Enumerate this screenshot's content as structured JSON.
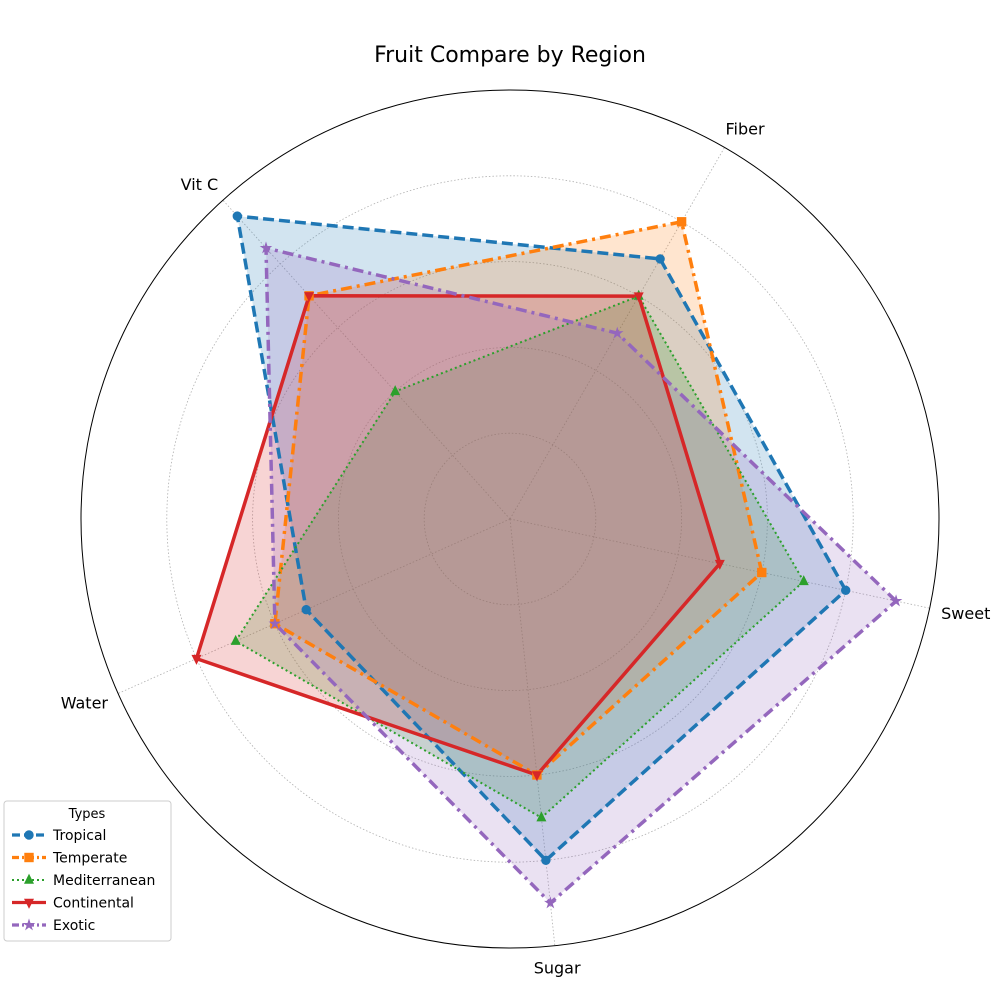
{
  "chart_data": {
    "type": "radar",
    "title": "Fruit Compare by Region",
    "axes": [
      "Sweet",
      "Fiber",
      "Vit C",
      "Water",
      "Sugar"
    ],
    "rlim": [
      0,
      10
    ],
    "rgrid": [
      2,
      4,
      6,
      8
    ],
    "grid": true,
    "legend": {
      "title": "Types",
      "placement": "lower-left"
    },
    "series": [
      {
        "name": "Tropical",
        "values": [
          8.0,
          7.0,
          9.5,
          5.2,
          8.0
        ],
        "color": "#1f77b4",
        "marker": "circle",
        "dash": "dashed"
      },
      {
        "name": "Temperate",
        "values": [
          6.0,
          8.0,
          7.0,
          6.0,
          6.0
        ],
        "color": "#ff7f0e",
        "marker": "square",
        "dash": "dashdot"
      },
      {
        "name": "Mediterranean",
        "values": [
          7.0,
          6.0,
          4.0,
          7.0,
          7.0
        ],
        "color": "#2ca02c",
        "marker": "triangle-up",
        "dash": "dotted"
      },
      {
        "name": "Continental",
        "values": [
          5.0,
          6.0,
          7.0,
          8.0,
          6.0
        ],
        "color": "#d62728",
        "marker": "triangle-down",
        "dash": "solid"
      },
      {
        "name": "Exotic",
        "values": [
          9.2,
          5.0,
          8.5,
          6.0,
          9.0
        ],
        "color": "#9467bd",
        "marker": "star",
        "dash": "dashdot"
      }
    ]
  }
}
